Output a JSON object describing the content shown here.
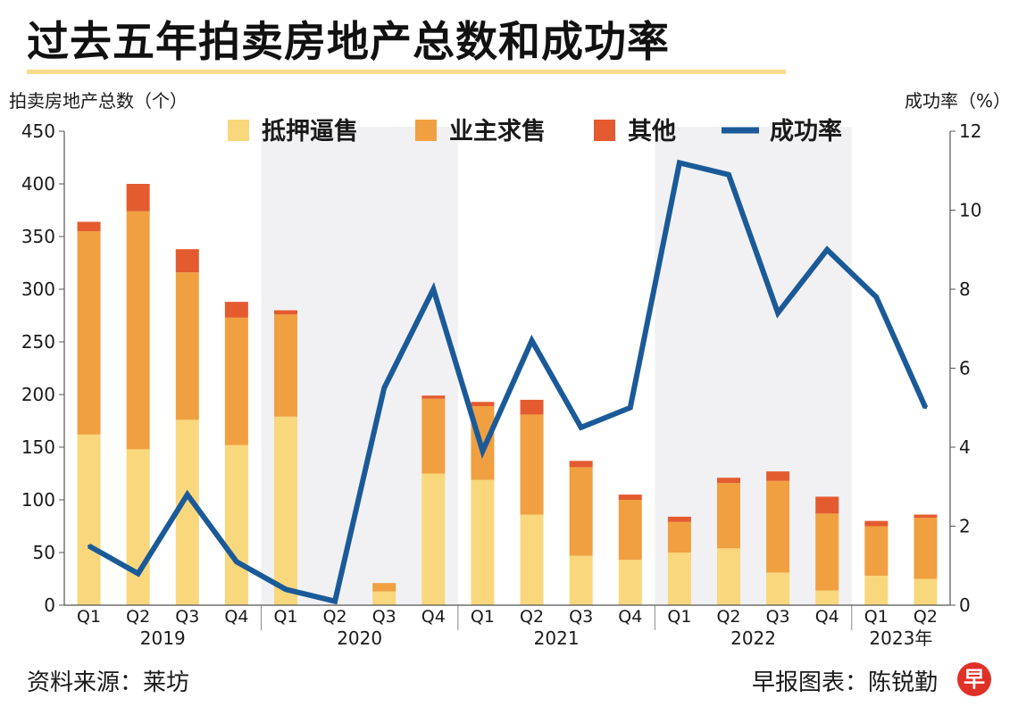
{
  "title": "过去五年拍卖房地产总数和成功率",
  "footer": {
    "source": "资料来源：莱坊",
    "credit": "早报图表：陈锐勤",
    "logo_text": "早"
  },
  "chart_data": {
    "type": "bar",
    "stacked": true,
    "title": "过去五年拍卖房地产总数和成功率",
    "ylabel_left": "拍卖房地产总数（个）",
    "ylabel_right": "成功率（%）",
    "ylim_left": [
      0,
      450
    ],
    "yticks_left": [
      0,
      50,
      100,
      150,
      200,
      250,
      300,
      350,
      400,
      450
    ],
    "ylim_right": [
      0,
      12
    ],
    "yticks_right": [
      0,
      2,
      4,
      6,
      8,
      10,
      12
    ],
    "categories": [
      "Q1",
      "Q2",
      "Q3",
      "Q4",
      "Q1",
      "Q2",
      "Q3",
      "Q4",
      "Q1",
      "Q2",
      "Q3",
      "Q4",
      "Q1",
      "Q2",
      "Q3",
      "Q4",
      "Q1",
      "Q2"
    ],
    "year_groups": [
      {
        "label": "2019",
        "count": 4
      },
      {
        "label": "2020",
        "count": 4
      },
      {
        "label": "2021",
        "count": 4
      },
      {
        "label": "2022",
        "count": 4
      },
      {
        "label": "2023年",
        "count": 2
      }
    ],
    "series": [
      {
        "name": "抵押逼售",
        "color": "#f9d77c",
        "values": [
          162,
          148,
          176,
          152,
          179,
          0,
          13,
          125,
          119,
          86,
          47,
          43,
          50,
          54,
          31,
          14,
          28,
          25
        ]
      },
      {
        "name": "业主求售",
        "color": "#f0a040",
        "values": [
          193,
          226,
          140,
          121,
          97,
          0,
          8,
          71,
          70,
          95,
          84,
          57,
          29,
          62,
          87,
          73,
          47,
          58
        ]
      },
      {
        "name": "其他",
        "color": "#e45b30",
        "values": [
          9,
          26,
          22,
          15,
          4,
          0,
          0,
          3,
          4,
          14,
          6,
          5,
          5,
          5,
          9,
          16,
          5,
          3
        ]
      }
    ],
    "line_series": {
      "name": "成功率",
      "color": "#1b5a98",
      "axis": "right",
      "values": [
        1.5,
        0.8,
        2.8,
        1.1,
        0.4,
        0.1,
        5.5,
        8.0,
        3.9,
        6.7,
        4.5,
        5.0,
        11.2,
        10.9,
        7.4,
        9.0,
        7.8,
        5.0
      ]
    }
  }
}
